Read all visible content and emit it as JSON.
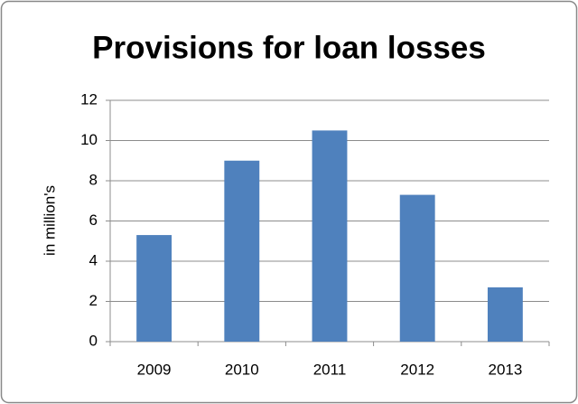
{
  "chart_data": {
    "type": "bar",
    "title": "Provisions for loan losses",
    "y_label": "in million's",
    "categories": [
      "2009",
      "2010",
      "2011",
      "2012",
      "2013"
    ],
    "values": [
      5.3,
      9.0,
      10.5,
      7.3,
      2.7
    ],
    "color": "#4f81bd",
    "ylim": [
      0,
      12
    ],
    "yticks": [
      0,
      2,
      4,
      6,
      8,
      10,
      12
    ],
    "grid": true
  }
}
